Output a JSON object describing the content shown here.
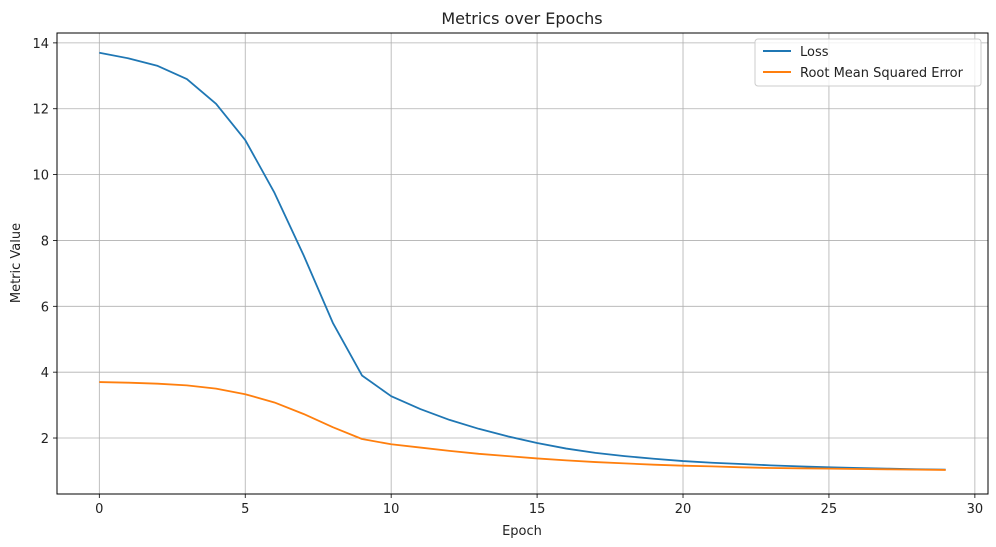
{
  "chart_data": {
    "type": "line",
    "title": "Metrics over Epochs",
    "xlabel": "Epoch",
    "ylabel": "Metric Value",
    "xlim": [
      -1.45,
      30.45
    ],
    "ylim": [
      0.3,
      14.3
    ],
    "xticks": [
      0,
      5,
      10,
      15,
      20,
      25,
      30
    ],
    "yticks": [
      2,
      4,
      6,
      8,
      10,
      12,
      14
    ],
    "grid": true,
    "legend_position": "top-right",
    "x": [
      0,
      1,
      2,
      3,
      4,
      5,
      6,
      7,
      8,
      9,
      10,
      11,
      12,
      13,
      14,
      15,
      16,
      17,
      18,
      19,
      20,
      21,
      22,
      23,
      24,
      25,
      26,
      27,
      28,
      29
    ],
    "series": [
      {
        "name": "Loss",
        "color": "#1f77b4",
        "values": [
          13.7,
          13.53,
          13.3,
          12.9,
          12.15,
          11.05,
          9.45,
          7.55,
          5.5,
          3.9,
          3.27,
          2.88,
          2.55,
          2.28,
          2.05,
          1.85,
          1.68,
          1.55,
          1.45,
          1.37,
          1.3,
          1.25,
          1.21,
          1.17,
          1.14,
          1.11,
          1.09,
          1.07,
          1.05,
          1.04
        ]
      },
      {
        "name": "Root Mean Squared Error",
        "color": "#ff7f0e",
        "values": [
          3.7,
          3.68,
          3.65,
          3.6,
          3.5,
          3.33,
          3.08,
          2.73,
          2.33,
          1.97,
          1.81,
          1.71,
          1.61,
          1.52,
          1.45,
          1.38,
          1.32,
          1.27,
          1.23,
          1.19,
          1.16,
          1.14,
          1.11,
          1.09,
          1.08,
          1.07,
          1.06,
          1.05,
          1.04,
          1.03
        ]
      }
    ]
  }
}
